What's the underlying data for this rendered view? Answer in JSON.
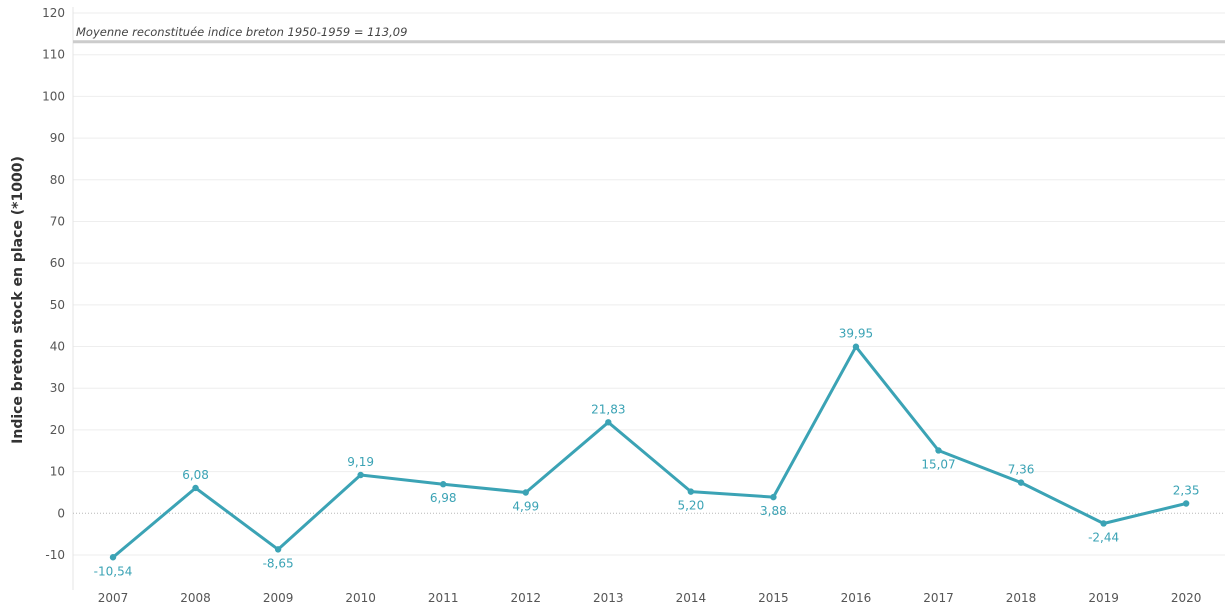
{
  "chart_data": {
    "type": "line",
    "title": "",
    "ylabel": "Indice breton stock en place (*1000)",
    "xlabel": "",
    "ylim": [
      -10,
      120
    ],
    "yticks": [
      -10,
      0,
      10,
      20,
      30,
      40,
      50,
      60,
      70,
      80,
      90,
      100,
      110,
      120
    ],
    "categories": [
      "2007",
      "2008",
      "2009",
      "2010",
      "2011",
      "2012",
      "2013",
      "2014",
      "2015",
      "2016",
      "2017",
      "2018",
      "2019",
      "2020"
    ],
    "series": [
      {
        "values": [
          -10.54,
          6.08,
          -8.65,
          9.19,
          6.98,
          4.99,
          21.83,
          5.2,
          3.88,
          39.95,
          15.07,
          7.36,
          -2.44,
          2.35
        ],
        "labels": [
          "-10,54",
          "6,08",
          "-8,65",
          "9,19",
          "6,98",
          "4,99",
          "21,83",
          "5,20",
          "3,88",
          "39,95",
          "15,07",
          "7,36",
          "-2,44",
          "2,35"
        ],
        "color": "#3ba3b5"
      }
    ],
    "reference_line": {
      "value": 113.09,
      "label": "Moyenne reconstituée indice breton 1950-1959 = 113,09",
      "color": "#cccccc"
    },
    "zero_line": "dotted",
    "grid": "horizontal"
  }
}
